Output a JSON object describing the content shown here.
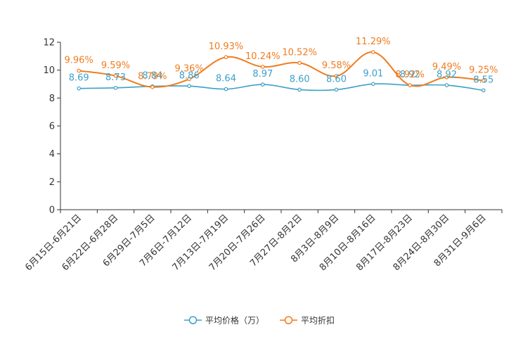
{
  "chart_data": {
    "type": "line",
    "title": "",
    "xlabel": "",
    "ylabel": "",
    "ylim": [
      0,
      12
    ],
    "yticks": [
      0,
      2,
      4,
      6,
      8,
      10,
      12
    ],
    "grid": false,
    "legend_position": "bottom-center",
    "categories": [
      "6月15日-6月21日",
      "6月22日-6月28日",
      "6月29日-7月5日",
      "7月6日-7月12日",
      "7月13日-7月19日",
      "7月20日-7月26日",
      "7月27日-8月2日",
      "8月3日-8月9日",
      "8月10日-8月16日",
      "8月17日-8月23日",
      "8月24日-8月30日",
      "8月31日-9月6日"
    ],
    "series": [
      {
        "name": "平均价格（万）",
        "color": "#3ba1c8",
        "values": [
          8.69,
          8.73,
          8.84,
          8.86,
          8.64,
          8.97,
          8.6,
          8.6,
          9.01,
          8.92,
          8.92,
          8.55
        ],
        "labels": [
          "8.69",
          "8.73",
          "8.84",
          "8.86",
          "8.64",
          "8.97",
          "8.60",
          "8.60",
          "9.01",
          "8.92",
          "8.92",
          "8.55"
        ]
      },
      {
        "name": "平均折扣",
        "color": "#f07c1f",
        "values": [
          9.96,
          9.59,
          8.79,
          9.36,
          10.93,
          10.24,
          10.52,
          9.58,
          11.29,
          8.92,
          9.49,
          9.25
        ],
        "labels": [
          "9.96%",
          "9.59%",
          "8.79%",
          "9.36%",
          "10.93%",
          "10.24%",
          "10.52%",
          "9.58%",
          "11.29%",
          "8.92%",
          "9.49%",
          "9.25%"
        ]
      }
    ]
  }
}
